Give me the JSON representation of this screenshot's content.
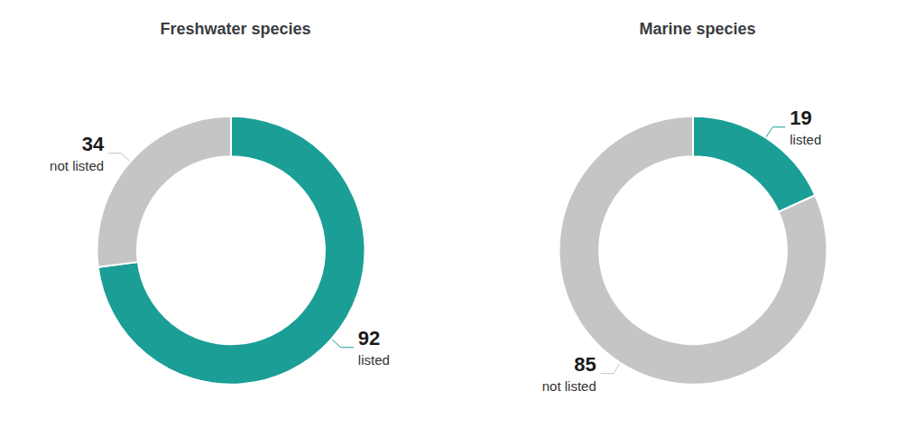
{
  "chart_data": [
    {
      "type": "pie",
      "title": "Freshwater species",
      "categories": [
        "listed",
        "not listed"
      ],
      "values": [
        92,
        34
      ],
      "colors": [
        "#1a9e96",
        "#c5c5c5"
      ],
      "data_labels": true
    },
    {
      "type": "pie",
      "title": "Marine species",
      "categories": [
        "listed",
        "not listed"
      ],
      "values": [
        19,
        85
      ],
      "colors": [
        "#1a9e96",
        "#c5c5c5"
      ],
      "data_labels": true
    }
  ]
}
